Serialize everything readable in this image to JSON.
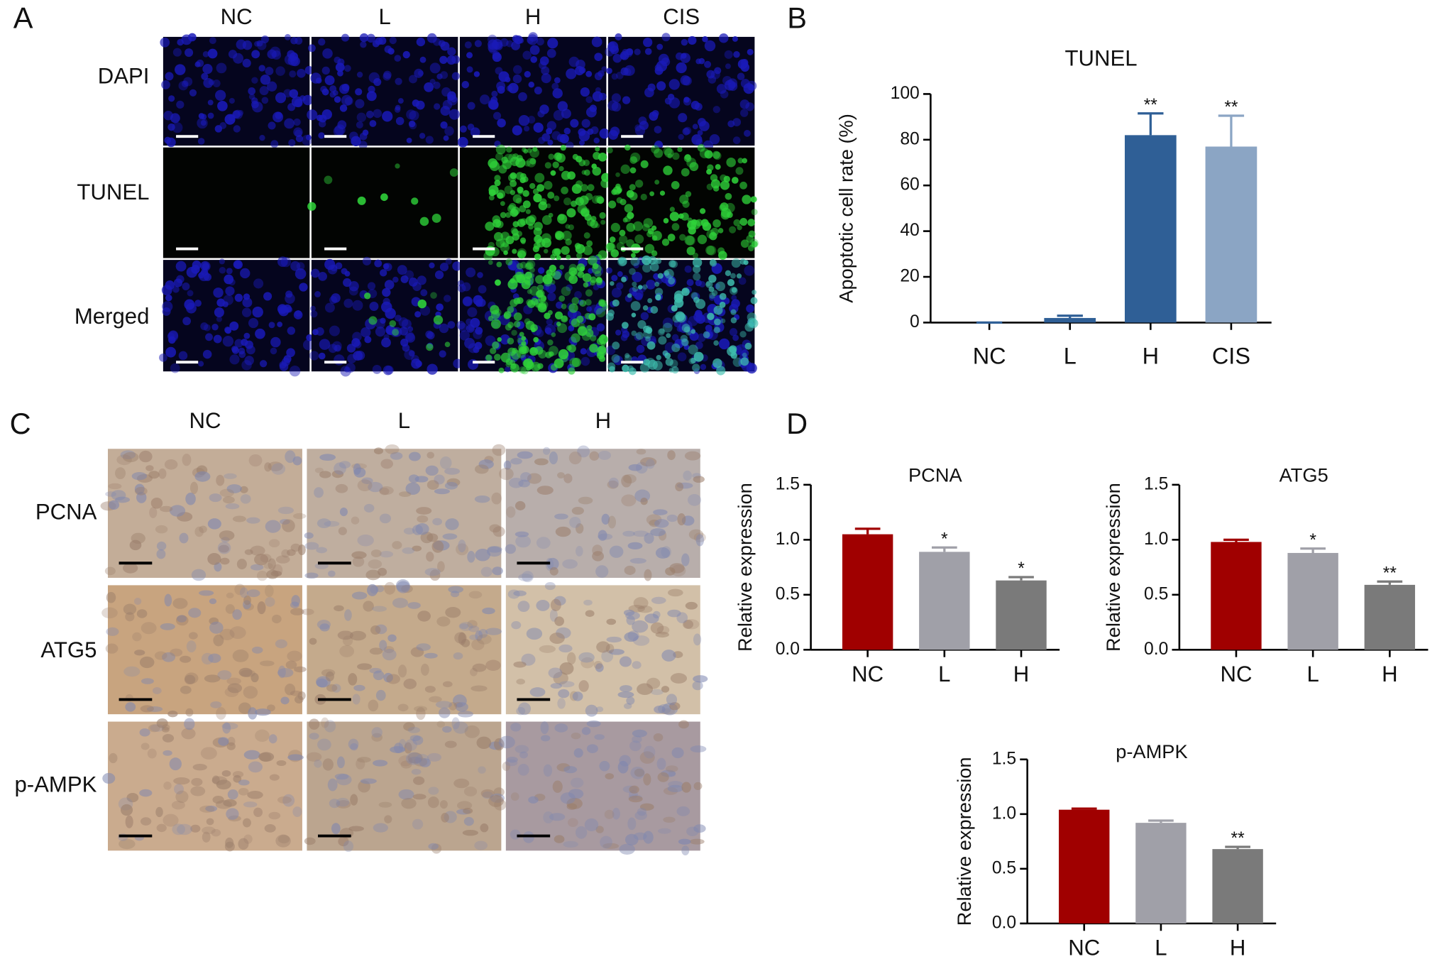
{
  "panel_labels": [
    "A",
    "B",
    "C",
    "D"
  ],
  "tunel_images": {
    "columns": [
      "NC",
      "L",
      "H",
      "CIS"
    ],
    "rows": [
      "DAPI",
      "TUNEL",
      "Merged"
    ]
  },
  "ihc_images": {
    "columns": [
      "NC",
      "L",
      "H"
    ],
    "rows": [
      "PCNA",
      "ATG5",
      "p-AMPK"
    ]
  },
  "chart_data": [
    {
      "type": "bar",
      "title": "TUNEL",
      "y_label": "Apoptotic cell rate (%)",
      "categories": [
        "NC",
        "L",
        "H",
        "CIS"
      ],
      "values": [
        0,
        2,
        82,
        77
      ],
      "errors": [
        0,
        1,
        9.5,
        13.5
      ],
      "significance": [
        null,
        null,
        "**",
        "**"
      ],
      "colors": [
        "#2f5f96",
        "#2f5f96",
        "#2f5f96",
        "#8ba5c4"
      ],
      "ylim": [
        0,
        100
      ],
      "yticks": [
        0,
        20,
        40,
        60,
        80,
        100
      ],
      "grid": false
    },
    {
      "type": "bar",
      "title": "PCNA",
      "y_label": "Relative expression",
      "categories": [
        "NC",
        "L",
        "H"
      ],
      "values": [
        1.05,
        0.89,
        0.63
      ],
      "errors": [
        0.05,
        0.04,
        0.03
      ],
      "significance": [
        null,
        "*",
        "*"
      ],
      "colors": [
        "#a00000",
        "#a0a0a8",
        "#7a7a7a"
      ],
      "ylim": [
        0,
        1.5
      ],
      "yticks": [
        {
          "value": 0,
          "label": "0.0"
        },
        0.5,
        {
          "value": 1,
          "label": "1.0"
        },
        1.5
      ],
      "grid": false
    },
    {
      "type": "bar",
      "title": "ATG5",
      "y_label": "Relative expression",
      "categories": [
        "NC",
        "L",
        "H"
      ],
      "values": [
        0.98,
        0.88,
        0.59
      ],
      "errors": [
        0.02,
        0.04,
        0.03
      ],
      "significance": [
        null,
        "*",
        "**"
      ],
      "colors": [
        "#a00000",
        "#a0a0a8",
        "#7a7a7a"
      ],
      "ylim": [
        0,
        1.5
      ],
      "yticks": [
        {
          "value": 0,
          "label": "0.0"
        },
        0.5,
        {
          "value": 1,
          "label": "1.0"
        },
        1.5
      ],
      "grid": false
    },
    {
      "type": "bar",
      "title": "p-AMPK",
      "y_label": "Relative expression",
      "categories": [
        "NC",
        "L",
        "H"
      ],
      "values": [
        1.04,
        0.92,
        0.68
      ],
      "errors": [
        0.01,
        0.02,
        0.02
      ],
      "significance": [
        null,
        null,
        "**"
      ],
      "colors": [
        "#a00000",
        "#a0a0a8",
        "#7a7a7a"
      ],
      "ylim": [
        0,
        1.5
      ],
      "yticks": [
        {
          "value": 0,
          "label": "0.0"
        },
        0.5,
        {
          "value": 1,
          "label": "1.0"
        },
        1.5
      ],
      "grid": false
    }
  ]
}
